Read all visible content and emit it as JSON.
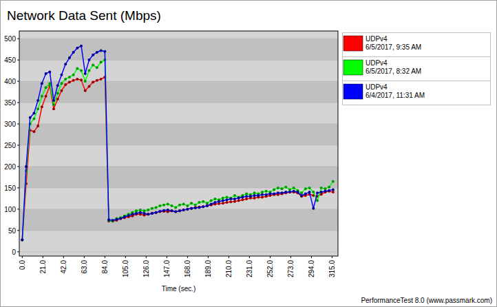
{
  "chart_data": {
    "type": "line",
    "title": "Network Data Sent (Mbps)",
    "x_label": "Time (sec.)",
    "annotations": [
      "PerformanceTest 8.0 (www.passmark.com)"
    ],
    "x": [
      0,
      4,
      8,
      12,
      16,
      20,
      24,
      28,
      32,
      36,
      40,
      44,
      48,
      52,
      56,
      60,
      64,
      68,
      72,
      76,
      80,
      84,
      88,
      92,
      96,
      100,
      104,
      108,
      112,
      116,
      120,
      124,
      128,
      132,
      136,
      140,
      144,
      148,
      152,
      156,
      160,
      164,
      168,
      172,
      176,
      180,
      184,
      188,
      192,
      196,
      200,
      204,
      208,
      212,
      216,
      220,
      224,
      228,
      232,
      236,
      240,
      244,
      248,
      252,
      256,
      260,
      264,
      268,
      272,
      276,
      280,
      284,
      288,
      292,
      296,
      300,
      304,
      308,
      312,
      316
    ],
    "series": [
      {
        "name": "UDPv4\n6/5/2017, 9:35 AM",
        "color": "#ff0000",
        "values": [
          28,
          160,
          285,
          282,
          295,
          340,
          365,
          390,
          335,
          358,
          378,
          392,
          398,
          402,
          405,
          403,
          378,
          388,
          398,
          402,
          405,
          410,
          72,
          72,
          74,
          78,
          80,
          82,
          84,
          88,
          88,
          86,
          88,
          90,
          92,
          94,
          95,
          94,
          96,
          94,
          96,
          98,
          100,
          102,
          104,
          105,
          106,
          108,
          110,
          112,
          113,
          114,
          116,
          117,
          118,
          120,
          122,
          124,
          126,
          126,
          128,
          128,
          130,
          132,
          134,
          134,
          136,
          138,
          140,
          140,
          138,
          130,
          132,
          135,
          132,
          130,
          135,
          140,
          142,
          140
        ]
      },
      {
        "name": "UDPv4\n6/5/2017, 8:32 AM",
        "color": "#00ff00",
        "values": [
          28,
          190,
          300,
          312,
          335,
          365,
          385,
          395,
          345,
          372,
          395,
          405,
          410,
          415,
          430,
          425,
          400,
          425,
          438,
          432,
          445,
          450,
          74,
          72,
          78,
          80,
          84,
          88,
          92,
          96,
          98,
          96,
          98,
          102,
          104,
          108,
          110,
          112,
          108,
          104,
          110,
          112,
          108,
          114,
          110,
          116,
          118,
          114,
          120,
          124,
          122,
          126,
          128,
          126,
          132,
          128,
          132,
          136,
          134,
          138,
          136,
          140,
          142,
          140,
          146,
          150,
          148,
          152,
          146,
          150,
          144,
          138,
          148,
          150,
          140,
          120,
          150,
          148,
          152,
          165
        ]
      },
      {
        "name": "UDPv4\n6/4/2017, 11:31 AM",
        "color": "#0000ff",
        "values": [
          28,
          200,
          315,
          325,
          355,
          395,
          418,
          422,
          355,
          390,
          415,
          440,
          455,
          468,
          478,
          483,
          418,
          450,
          462,
          468,
          472,
          470,
          75,
          74,
          76,
          78,
          82,
          85,
          88,
          90,
          92,
          90,
          88,
          90,
          92,
          95,
          97,
          98,
          96,
          94,
          96,
          98,
          100,
          102,
          103,
          104,
          106,
          108,
          112,
          116,
          118,
          120,
          122,
          124,
          124,
          126,
          128,
          130,
          130,
          132,
          132,
          134,
          134,
          136,
          136,
          138,
          138,
          140,
          140,
          142,
          140,
          132,
          136,
          140,
          102,
          138,
          140,
          142,
          144,
          146
        ]
      }
    ],
    "xlim": [
      -3,
      321
    ],
    "ylim": [
      -10,
      518
    ],
    "xticks": [
      {
        "value": 0,
        "label": "0.0"
      },
      {
        "value": 21,
        "label": "21.0"
      },
      {
        "value": 42,
        "label": "42.0"
      },
      {
        "value": 63,
        "label": "63.0"
      },
      {
        "value": 84,
        "label": "84.0"
      },
      {
        "value": 105,
        "label": "105.0"
      },
      {
        "value": 126,
        "label": "126.0"
      },
      {
        "value": 147,
        "label": "147.0"
      },
      {
        "value": 168,
        "label": "168.0"
      },
      {
        "value": 189,
        "label": "189.0"
      },
      {
        "value": 210,
        "label": "210.0"
      },
      {
        "value": 231,
        "label": "231.0"
      },
      {
        "value": 252,
        "label": "252.0"
      },
      {
        "value": 273,
        "label": "273.0"
      },
      {
        "value": 294,
        "label": "294.0"
      },
      {
        "value": 315,
        "label": "315.0"
      }
    ],
    "yticks": [
      0,
      50,
      100,
      150,
      200,
      250,
      300,
      350,
      400,
      450,
      500
    ],
    "grid": true,
    "legend": "right",
    "marker": "circle"
  }
}
